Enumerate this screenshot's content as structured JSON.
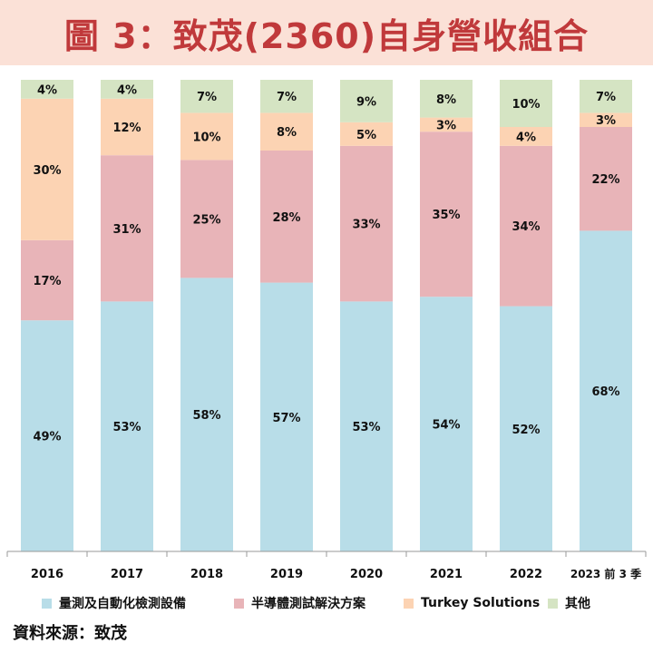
{
  "header": {
    "title": "圖 3：致茂(2360)自身營收組合"
  },
  "colors": {
    "title_bg": "#fbe1d7",
    "title_text": "#c0393b",
    "axis": "#999999",
    "label_text": "#111111"
  },
  "chart_data": {
    "type": "bar",
    "stacked": true,
    "percent": true,
    "title": "圖 3：致茂(2360)自身營收組合",
    "categories": [
      "2016",
      "2017",
      "2018",
      "2019",
      "2020",
      "2021",
      "2022",
      "2023 前 3 季"
    ],
    "ylim": [
      0,
      100
    ],
    "grid": false,
    "legend_position": "bottom",
    "series": [
      {
        "name": "量測及自動化檢測設備",
        "color": "#b8dde8",
        "values": [
          49,
          53,
          58,
          57,
          53,
          54,
          52,
          68
        ]
      },
      {
        "name": "半導體測試解決方案",
        "color": "#e8b4b8",
        "values": [
          17,
          31,
          25,
          28,
          33,
          35,
          34,
          22
        ]
      },
      {
        "name": "Turkey Solutions",
        "color": "#fcd3b3",
        "values": [
          30,
          12,
          10,
          8,
          5,
          3,
          4,
          3
        ]
      },
      {
        "name": "其他",
        "color": "#d5e4c3",
        "values": [
          4,
          4,
          7,
          7,
          9,
          8,
          10,
          7
        ]
      }
    ]
  },
  "footer": {
    "source": "資料來源：致茂"
  }
}
